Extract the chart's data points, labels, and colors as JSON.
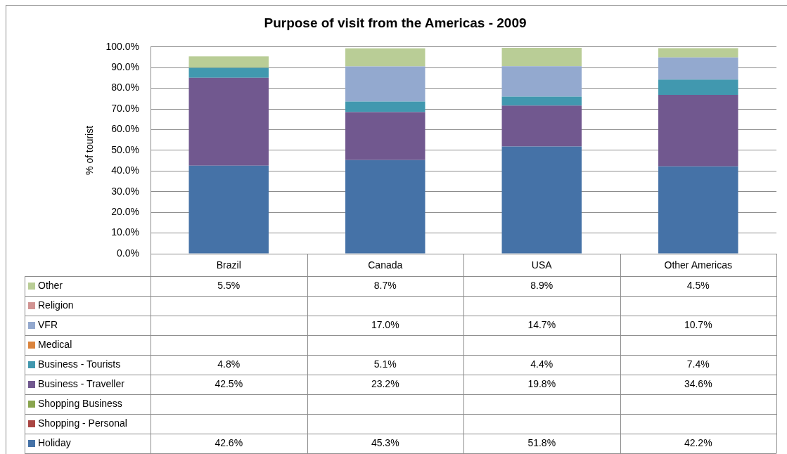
{
  "chart_data": {
    "type": "bar",
    "title": "Purpose of visit from the Americas - 2009",
    "ylabel": "% of tourist",
    "categories": [
      "Brazil",
      "Canada",
      "USA",
      "Other Americas"
    ],
    "stacked": true,
    "grid": "y",
    "legend": "bottom",
    "ylim": [
      0,
      100
    ],
    "yticks": [
      {
        "value": 0,
        "label": "0.0%"
      },
      {
        "value": 10,
        "label": "10.0%"
      },
      {
        "value": 20,
        "label": "20.0%"
      },
      {
        "value": 30,
        "label": "30.0%"
      },
      {
        "value": 40,
        "label": "40.0%"
      },
      {
        "value": 50,
        "label": "50.0%"
      },
      {
        "value": 60,
        "label": "60.0%"
      },
      {
        "value": 70,
        "label": "70.0%"
      },
      {
        "value": 80,
        "label": "80.0%"
      },
      {
        "value": 90,
        "label": "90.0%"
      },
      {
        "value": 100,
        "label": "100.0%"
      }
    ],
    "series": [
      {
        "name": "Holiday",
        "color": "#4572a7",
        "values": [
          42.6,
          45.3,
          51.8,
          42.2
        ],
        "value_labels": [
          "42.6%",
          "45.3%",
          "51.8%",
          "42.2%"
        ]
      },
      {
        "name": "Shopping - Personal",
        "color": "#aa4643",
        "values": [
          null,
          null,
          null,
          null
        ],
        "value_labels": [
          null,
          null,
          null,
          null
        ]
      },
      {
        "name": "Shopping Business",
        "color": "#89a54e",
        "values": [
          null,
          null,
          null,
          null
        ],
        "value_labels": [
          null,
          null,
          null,
          null
        ]
      },
      {
        "name": "Business - Traveller",
        "color": "#71588f",
        "values": [
          42.5,
          23.2,
          19.8,
          34.6
        ],
        "value_labels": [
          "42.5%",
          "23.2%",
          "19.8%",
          "34.6%"
        ]
      },
      {
        "name": "Business - Tourists",
        "color": "#4198af",
        "values": [
          4.8,
          5.1,
          4.4,
          7.4
        ],
        "value_labels": [
          "4.8%",
          "5.1%",
          "4.4%",
          "7.4%"
        ]
      },
      {
        "name": "Medical",
        "color": "#db843d",
        "values": [
          null,
          null,
          null,
          null
        ],
        "value_labels": [
          null,
          null,
          null,
          null
        ]
      },
      {
        "name": "VFR",
        "color": "#93a9cf",
        "values": [
          null,
          17.0,
          14.7,
          10.7
        ],
        "value_labels": [
          null,
          "17.0%",
          "14.7%",
          "10.7%"
        ]
      },
      {
        "name": "Religion",
        "color": "#d19392",
        "values": [
          null,
          null,
          null,
          null
        ],
        "value_labels": [
          null,
          null,
          null,
          null
        ]
      },
      {
        "name": "Other",
        "color": "#b9cd96",
        "values": [
          5.5,
          8.7,
          8.9,
          4.5
        ],
        "value_labels": [
          "5.5%",
          "8.7%",
          "8.9%",
          "4.5%"
        ]
      }
    ]
  }
}
